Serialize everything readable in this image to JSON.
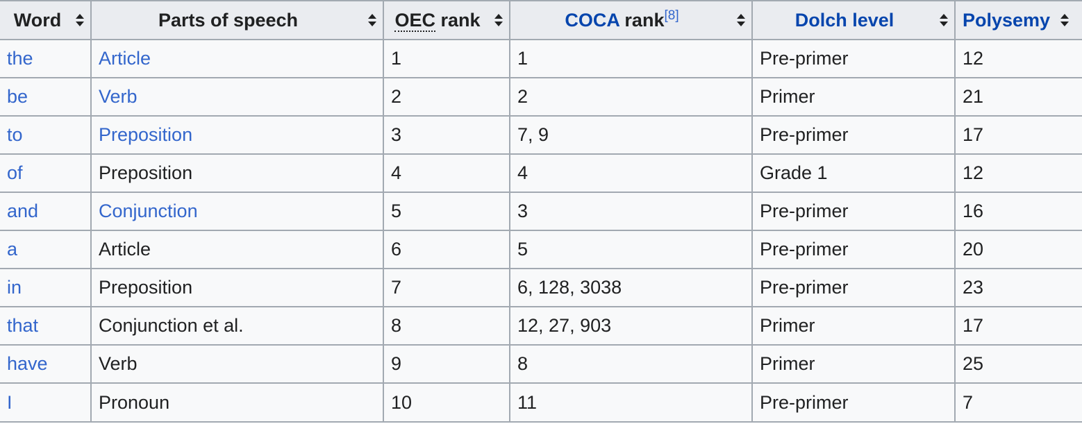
{
  "headers": {
    "word": "Word",
    "pos": "Parts of speech",
    "oec": "OEC rank",
    "coca": "COCA rank",
    "coca_ref": "[8]",
    "dolch": "Dolch level",
    "polysemy": "Polysemy"
  },
  "colors": {
    "link": "#3366cc",
    "header_link": "#0645ad",
    "header_bg": "#eaecf0",
    "cell_bg": "#f8f9fa",
    "border": "#a2a9b1"
  },
  "rows": [
    {
      "word": "the",
      "pos": "Article",
      "pos_link": true,
      "oec": "1",
      "coca": "1",
      "dolch": "Pre-primer",
      "polysemy": "12"
    },
    {
      "word": "be",
      "pos": "Verb",
      "pos_link": true,
      "oec": "2",
      "coca": "2",
      "dolch": "Primer",
      "polysemy": "21"
    },
    {
      "word": "to",
      "pos": "Preposition",
      "pos_link": true,
      "oec": "3",
      "coca": "7, 9",
      "dolch": "Pre-primer",
      "polysemy": "17"
    },
    {
      "word": "of",
      "pos": "Preposition",
      "pos_link": false,
      "oec": "4",
      "coca": "4",
      "dolch": "Grade 1",
      "polysemy": "12"
    },
    {
      "word": "and",
      "pos": "Conjunction",
      "pos_link": true,
      "oec": "5",
      "coca": "3",
      "dolch": "Pre-primer",
      "polysemy": "16"
    },
    {
      "word": "a",
      "pos": "Article",
      "pos_link": false,
      "oec": "6",
      "coca": "5",
      "dolch": "Pre-primer",
      "polysemy": "20"
    },
    {
      "word": "in",
      "pos": "Preposition",
      "pos_link": false,
      "oec": "7",
      "coca": "6, 128, 3038",
      "dolch": "Pre-primer",
      "polysemy": "23"
    },
    {
      "word": "that",
      "pos": "Conjunction et al.",
      "pos_link": false,
      "oec": "8",
      "coca": "12, 27, 903",
      "dolch": "Primer",
      "polysemy": "17"
    },
    {
      "word": "have",
      "pos": "Verb",
      "pos_link": false,
      "oec": "9",
      "coca": "8",
      "dolch": "Primer",
      "polysemy": "25"
    },
    {
      "word": "I",
      "pos": "Pronoun",
      "pos_link": false,
      "oec": "10",
      "coca": "11",
      "dolch": "Pre-primer",
      "polysemy": "7"
    }
  ]
}
